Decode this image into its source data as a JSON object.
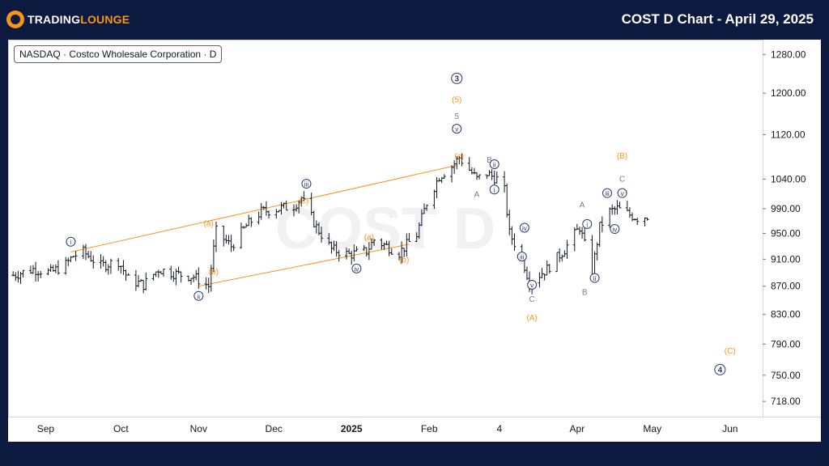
{
  "header": {
    "logo_part1": "TRADING",
    "logo_part2": "LOUNGE",
    "title": "COST D Chart - April 29, 2025"
  },
  "legend": "NASDAQ · Costco Wholesale Corporation · D",
  "watermark": "COST D",
  "colors": {
    "background": "#0d1a40",
    "orange": "#f7941d",
    "wave_navy": "#2b3a6b",
    "grey": "#787b86",
    "price": "#131722"
  },
  "chart_data": {
    "type": "ohlc",
    "title": "COST D Chart - April 29, 2025",
    "y_ticks": [
      1280,
      1200,
      1120,
      1040,
      990,
      950,
      910,
      870,
      830,
      790,
      750,
      718
    ],
    "y_tick_labels": [
      "1280.00",
      "1200.00",
      "1120.00",
      "1040.00",
      "990.00",
      "950.00",
      "910.00",
      "870.00",
      "830.00",
      "790.00",
      "750.00",
      "718.00"
    ],
    "y_scale": "log",
    "x_labels": [
      "Sep",
      "Oct",
      "Nov",
      "Dec",
      "2025",
      "Feb",
      "4",
      "Apr",
      "May",
      "Jun"
    ],
    "x_label_dates": [
      "2024-09-01",
      "2024-10-01",
      "2024-11-01",
      "2024-12-01",
      "2025-01-01",
      "2025-02-01",
      "2025-03-01",
      "2025-04-01",
      "2025-05-01",
      "2025-06-01"
    ],
    "closes": [
      [
        "2024-08-19",
        886
      ],
      [
        "2024-08-27",
        895
      ],
      [
        "2024-09-03",
        890
      ],
      [
        "2024-09-09",
        902
      ],
      [
        "2024-09-12",
        915
      ],
      [
        "2024-09-16",
        921
      ],
      [
        "2024-09-23",
        900
      ],
      [
        "2024-09-30",
        907
      ],
      [
        "2024-10-04",
        880
      ],
      [
        "2024-10-10",
        872
      ],
      [
        "2024-10-16",
        895
      ],
      [
        "2024-10-23",
        888
      ],
      [
        "2024-10-30",
        884
      ],
      [
        "2024-11-05",
        870
      ],
      [
        "2024-11-08",
        953
      ],
      [
        "2024-11-14",
        930
      ],
      [
        "2024-11-20",
        962
      ],
      [
        "2024-11-26",
        985
      ],
      [
        "2024-12-03",
        990
      ],
      [
        "2024-12-09",
        995
      ],
      [
        "2024-12-12",
        1008
      ],
      [
        "2024-12-18",
        960
      ],
      [
        "2024-12-24",
        925
      ],
      [
        "2024-12-31",
        917
      ],
      [
        "2025-01-07",
        922
      ],
      [
        "2025-01-10",
        940
      ],
      [
        "2025-01-15",
        930
      ],
      [
        "2025-01-20",
        920
      ],
      [
        "2025-01-27",
        948
      ],
      [
        "2025-01-31",
        1000
      ],
      [
        "2025-02-05",
        1045
      ],
      [
        "2025-02-10",
        1062
      ],
      [
        "2025-02-13",
        1078
      ],
      [
        "2025-02-20",
        1040
      ],
      [
        "2025-02-24",
        1050
      ],
      [
        "2025-02-28",
        1040
      ],
      [
        "2025-03-03",
        1020
      ],
      [
        "2025-03-05",
        950
      ],
      [
        "2025-03-10",
        912
      ],
      [
        "2025-03-13",
        876
      ],
      [
        "2025-03-20",
        895
      ],
      [
        "2025-03-27",
        925
      ],
      [
        "2025-04-02",
        960
      ],
      [
        "2025-04-07",
        890
      ],
      [
        "2025-04-10",
        960
      ],
      [
        "2025-04-14",
        985
      ],
      [
        "2025-04-17",
        990
      ],
      [
        "2025-04-22",
        980
      ],
      [
        "2025-04-25",
        975
      ],
      [
        "2025-04-29",
        978
      ]
    ],
    "channel_lines": [
      {
        "from": [
          "2024-09-11",
          921
        ],
        "to": [
          "2025-02-12",
          1064
        ]
      },
      {
        "from": [
          "2024-11-01",
          870
        ],
        "to": [
          "2025-01-24",
          933
        ]
      }
    ],
    "wave_labels": [
      {
        "text": "i",
        "date": "2024-09-11",
        "price": 937,
        "style": "circle"
      },
      {
        "text": "ii",
        "date": "2024-11-01",
        "price": 856,
        "style": "circle"
      },
      {
        "text": "iii",
        "date": "2024-12-14",
        "price": 1032,
        "style": "circle"
      },
      {
        "text": "iv",
        "date": "2025-01-03",
        "price": 896,
        "style": "circle"
      },
      {
        "text": "v",
        "date": "2025-02-12",
        "price": 1131,
        "style": "circle"
      },
      {
        "text": "5",
        "date": "2025-02-12",
        "price": 1156,
        "style": "grey"
      },
      {
        "text": "(5)",
        "date": "2025-02-12",
        "price": 1188,
        "style": "orange"
      },
      {
        "text": "3",
        "date": "2025-02-12",
        "price": 1230,
        "style": "circle-dark"
      },
      {
        "text": "(a)",
        "date": "2024-11-05",
        "price": 967,
        "style": "orange"
      },
      {
        "text": "(b)",
        "date": "2024-11-07",
        "price": 892,
        "style": "orange"
      },
      {
        "text": "(c)",
        "date": "2024-12-13",
        "price": 1004,
        "style": "orange"
      },
      {
        "text": "(a)",
        "date": "2025-01-08",
        "price": 945,
        "style": "orange"
      },
      {
        "text": "(b)",
        "date": "2025-01-22",
        "price": 910,
        "style": "orange"
      },
      {
        "text": "(c)",
        "date": "2025-02-13",
        "price": 1081,
        "style": "orange"
      },
      {
        "text": "A",
        "date": "2025-02-20",
        "price": 1015,
        "style": "grey"
      },
      {
        "text": "B",
        "date": "2025-02-25",
        "price": 1075,
        "style": "grey"
      },
      {
        "text": "ii",
        "date": "2025-02-27",
        "price": 1066,
        "style": "circle"
      },
      {
        "text": "i",
        "date": "2025-02-27",
        "price": 1022,
        "style": "circle"
      },
      {
        "text": "iv",
        "date": "2025-03-11",
        "price": 959,
        "style": "circle"
      },
      {
        "text": "iii",
        "date": "2025-03-10",
        "price": 914,
        "style": "circle"
      },
      {
        "text": "v",
        "date": "2025-03-14",
        "price": 872,
        "style": "circle"
      },
      {
        "text": "C",
        "date": "2025-03-14",
        "price": 852,
        "style": "grey"
      },
      {
        "text": "(A)",
        "date": "2025-03-14",
        "price": 826,
        "style": "orange"
      },
      {
        "text": "A",
        "date": "2025-04-03",
        "price": 997,
        "style": "grey"
      },
      {
        "text": "i",
        "date": "2025-04-05",
        "price": 965,
        "style": "circle"
      },
      {
        "text": "ii",
        "date": "2025-04-08",
        "price": 882,
        "style": "circle"
      },
      {
        "text": "B",
        "date": "2025-04-04",
        "price": 862,
        "style": "grey"
      },
      {
        "text": "iii",
        "date": "2025-04-13",
        "price": 1016,
        "style": "circle"
      },
      {
        "text": "iv",
        "date": "2025-04-16",
        "price": 957,
        "style": "circle"
      },
      {
        "text": "v",
        "date": "2025-04-19",
        "price": 1016,
        "style": "circle"
      },
      {
        "text": "C",
        "date": "2025-04-19",
        "price": 1041,
        "style": "grey"
      },
      {
        "text": "(B)",
        "date": "2025-04-19",
        "price": 1082,
        "style": "orange"
      },
      {
        "text": "(C)",
        "date": "2025-06-01",
        "price": 782,
        "style": "orange"
      },
      {
        "text": "4",
        "date": "2025-05-28",
        "price": 757,
        "style": "circle-dark"
      }
    ]
  }
}
